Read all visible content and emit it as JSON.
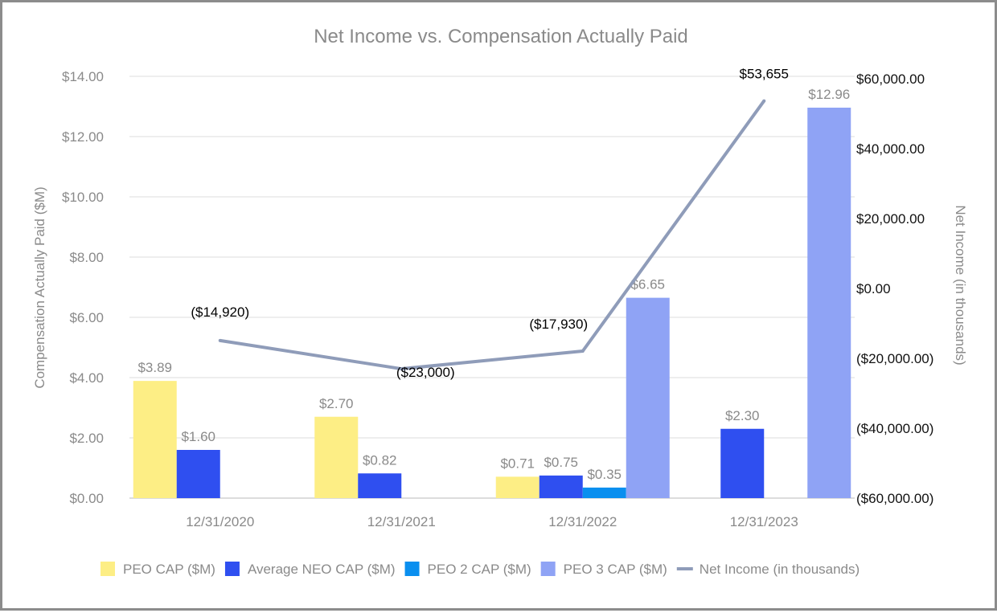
{
  "chart_data": {
    "type": "bar",
    "title": "Net Income vs. Compensation Actually Paid",
    "categories": [
      "12/31/2020",
      "12/31/2021",
      "12/31/2022",
      "12/31/2023"
    ],
    "ylabel": "Compensation Actually Paid ($M)",
    "y2label": "Net Income (in thousands)",
    "ylim": [
      0,
      14
    ],
    "y2lim": [
      -60000,
      60000
    ],
    "yticks": [
      "$0.00",
      "$2.00",
      "$4.00",
      "$6.00",
      "$8.00",
      "$10.00",
      "$12.00",
      "$14.00"
    ],
    "y2ticks": [
      "($60,000.00)",
      "($40,000.00)",
      "($20,000.00)",
      "$0.00",
      "$20,000.00",
      "$40,000.00",
      "$60,000.00"
    ],
    "grid": true,
    "legend_position": "bottom",
    "series": [
      {
        "name": "PEO CAP ($M)",
        "color": "#fdee85",
        "values": [
          3.89,
          2.7,
          0.71,
          null
        ],
        "labels": [
          "$3.89",
          "$2.70",
          "$0.71",
          ""
        ]
      },
      {
        "name": "Average NEO CAP ($M)",
        "color": "#2f4ff0",
        "values": [
          1.6,
          0.82,
          0.75,
          2.3
        ],
        "labels": [
          "$1.60",
          "$0.82",
          "$0.75",
          "$2.30"
        ]
      },
      {
        "name": "PEO 2 CAP ($M)",
        "color": "#0a8fef",
        "values": [
          null,
          null,
          0.35,
          null
        ],
        "labels": [
          "",
          "",
          "$0.35",
          ""
        ]
      },
      {
        "name": "PEO 3 CAP ($M)",
        "color": "#8fa3f5",
        "values": [
          null,
          null,
          6.65,
          12.96
        ],
        "labels": [
          "",
          "",
          "$6.65",
          "$12.96"
        ]
      }
    ],
    "line_series": {
      "name": "Net Income (in thousands)",
      "color": "#8f9cb9",
      "values": [
        -14920,
        -23000,
        -17930,
        53655
      ],
      "labels": [
        "($14,920)",
        "($23,000)",
        "($17,930)",
        "$53,655"
      ]
    }
  }
}
